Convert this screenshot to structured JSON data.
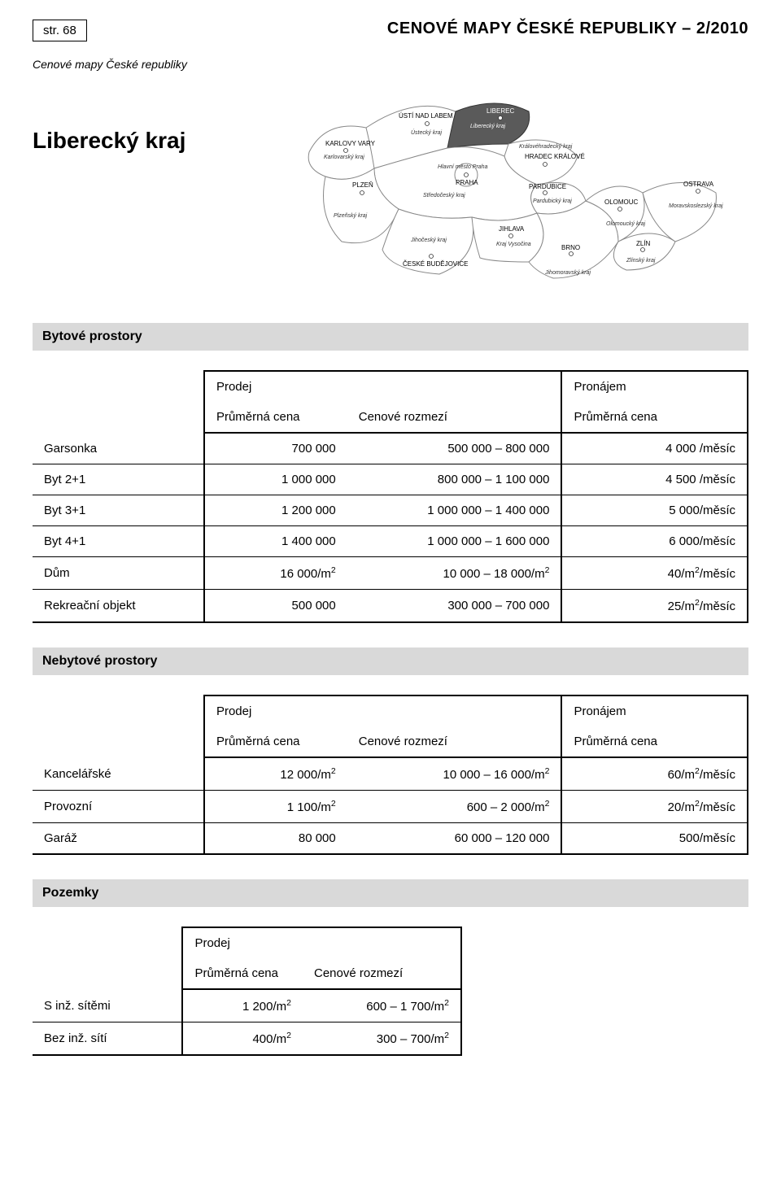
{
  "header": {
    "page_tag": "str. 68",
    "doc_title": "CENOVÉ MAPY ČESKÉ REPUBLIKY – 2/2010",
    "subtitle_italic": "Cenové mapy České republiky",
    "region_title": "Liberecký kraj"
  },
  "map": {
    "highlight_region": "Liberecký kraj",
    "highlight_color": "#5a5a5a",
    "region_fill": "#ffffff",
    "region_stroke": "#888888",
    "cities": [
      {
        "name": "KARLOVY VARY",
        "region": "Karlovarský kraj"
      },
      {
        "name": "ÚSTÍ NAD LABEM",
        "region": "Ústecký kraj"
      },
      {
        "name": "LIBEREC",
        "region": "Liberecký kraj"
      },
      {
        "name": "PRAHA",
        "region": "Hlavní město Praha"
      },
      {
        "name": "PLZEŇ",
        "region": "Plzeňský kraj"
      },
      {
        "name": "HRADEC KRÁLOVÉ",
        "region": "Královéhradecký kraj"
      },
      {
        "name": "PARDUBICE",
        "region": "Pardubický kraj"
      },
      {
        "name": "JIHLAVA",
        "region": "Kraj Vysočina"
      },
      {
        "name": "ČESKÉ BUDĚJOVICE",
        "region": "Jihočeský kraj"
      },
      {
        "name": "BRNO",
        "region": "Jihomoravský kraj"
      },
      {
        "name": "OLOMOUC",
        "region": "Olomoucký kraj"
      },
      {
        "name": "ZLÍN",
        "region": "Zlínský kraj"
      },
      {
        "name": "OSTRAVA",
        "region": "Moravskoslezský kraj"
      }
    ],
    "extra_region_label": "Středočeský kraj"
  },
  "sections": {
    "bytove": "Bytové prostory",
    "nebytove": "Nebytové prostory",
    "pozemky": "Pozemky"
  },
  "cols": {
    "prodej": "Prodej",
    "pronajem": "Pronájem",
    "prumer": "Průměrná cena",
    "rozmezi": "Cenové rozmezí"
  },
  "bytove_rows": [
    {
      "label": "Garsonka",
      "avg": "700 000",
      "range": "500 000 –   800 000",
      "rent": "4 000 /měsíc"
    },
    {
      "label": "Byt 2+1",
      "avg": "1 000 000",
      "range": "800 000 – 1 100 000",
      "rent": "4 500 /měsíc"
    },
    {
      "label": "Byt 3+1",
      "avg": "1 200 000",
      "range": "1 000 000 – 1 400 000",
      "rent": "5 000/měsíc"
    },
    {
      "label": "Byt 4+1",
      "avg": "1 400 000",
      "range": "1 000 000 – 1 600 000",
      "rent": "6 000/měsíc"
    },
    {
      "label": "Dům",
      "avg": "16 000/m²",
      "range": "10 000 – 18 000/m²",
      "rent": "40/m²/měsíc"
    },
    {
      "label": "Rekreační objekt",
      "avg": "500 000",
      "range": "300 000 – 700 000",
      "rent": "25/m²/měsíc"
    }
  ],
  "nebytove_rows": [
    {
      "label": "Kancelářské",
      "avg": "12 000/m²",
      "range": "10 000 – 16 000/m²",
      "rent": "60/m²/měsíc"
    },
    {
      "label": "Provozní",
      "avg": "1 100/m²",
      "range": "600 – 2 000/m²",
      "rent": "20/m²/měsíc"
    },
    {
      "label": "Garáž",
      "avg": "80 000",
      "range": "60 000 – 120 000",
      "rent": "500/měsíc"
    }
  ],
  "pozemky_rows": [
    {
      "label": "S inž. sítěmi",
      "avg": "1 200/m²",
      "range": "600 – 1 700/m²"
    },
    {
      "label": "Bez inž. sítí",
      "avg": "400/m²",
      "range": "300 –   700/m²"
    }
  ]
}
